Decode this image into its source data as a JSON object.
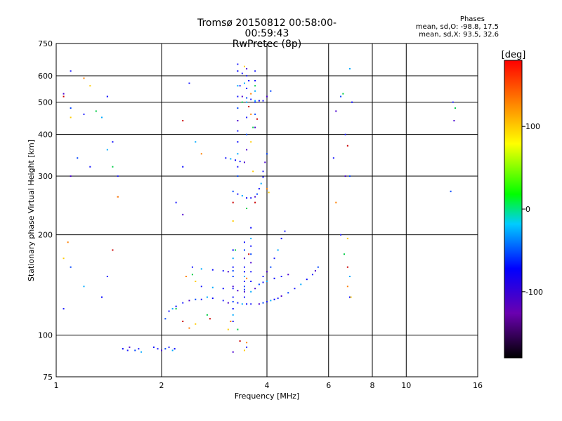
{
  "header": {
    "title_line1": "Tromsø 20150812 00:58:00-00:59:43",
    "title_line2": "RwPretec (8p)"
  },
  "phase_info": {
    "heading": "Phases",
    "line1": "mean, sd,O: -98.8, 17.5",
    "line2": "mean, sd,X:  93.5, 32.6"
  },
  "chart_data": {
    "type": "scatter",
    "title": "Tromsø 20150812 00:58:00-00:59:43",
    "subtitle": "RwPretec (8p)",
    "xlabel": "Frequency [MHz]",
    "ylabel": "Stationary phase Virtual Height [km]",
    "xscale": "log",
    "yscale": "log",
    "xlim": [
      1,
      16
    ],
    "ylim": [
      75,
      750
    ],
    "xticks": [
      1,
      2,
      4,
      6,
      8,
      10,
      16
    ],
    "xticklabels": [
      "1",
      "2",
      "4",
      "6",
      "8",
      "10",
      "16"
    ],
    "yticks": [
      75,
      100,
      200,
      300,
      400,
      500,
      600,
      750
    ],
    "yticklabels": [
      "75",
      "100",
      "200",
      "300",
      "400",
      "500",
      "600",
      "750"
    ],
    "grid": true,
    "colorbar": {
      "label": "[deg]",
      "range": [
        -180,
        180
      ],
      "ticks": [
        -100,
        0,
        100
      ],
      "colors": [
        "#000000",
        "#6a00b0",
        "#0000ff",
        "#00ccff",
        "#00ff00",
        "#ffff00",
        "#ff8000",
        "#ff0000"
      ]
    },
    "series": [
      {
        "points": [
          [
            1.55,
            91
          ],
          [
            1.6,
            90
          ],
          [
            1.62,
            92
          ],
          [
            1.68,
            90
          ],
          [
            1.72,
            91
          ],
          [
            1.75,
            89
          ],
          [
            1.9,
            92
          ],
          [
            1.95,
            91
          ],
          [
            2.0,
            90
          ],
          [
            2.05,
            91
          ],
          [
            2.1,
            92
          ],
          [
            2.15,
            90
          ],
          [
            2.18,
            91
          ],
          [
            3.5,
            92
          ],
          [
            3.2,
            89
          ],
          [
            2.05,
            112
          ],
          [
            2.1,
            118
          ],
          [
            2.15,
            120
          ],
          [
            2.2,
            122
          ],
          [
            2.3,
            125
          ],
          [
            2.4,
            127
          ],
          [
            2.5,
            128
          ],
          [
            2.6,
            128
          ],
          [
            2.7,
            130
          ],
          [
            2.8,
            129
          ],
          [
            3.0,
            127
          ],
          [
            3.1,
            125
          ],
          [
            3.2,
            126
          ],
          [
            3.3,
            125
          ],
          [
            3.4,
            124
          ],
          [
            3.5,
            124
          ],
          [
            3.6,
            124
          ],
          [
            3.8,
            124
          ],
          [
            3.9,
            125
          ],
          [
            4.0,
            126
          ],
          [
            4.1,
            127
          ],
          [
            4.2,
            128
          ],
          [
            4.3,
            129
          ],
          [
            4.4,
            131
          ],
          [
            4.6,
            134
          ],
          [
            4.8,
            138
          ],
          [
            5.0,
            142
          ],
          [
            5.2,
            147
          ],
          [
            5.4,
            152
          ],
          [
            5.5,
            156
          ],
          [
            5.6,
            160
          ],
          [
            2.45,
            160
          ],
          [
            2.6,
            158
          ],
          [
            2.8,
            157
          ],
          [
            3.0,
            156
          ],
          [
            3.1,
            155
          ],
          [
            3.2,
            156
          ],
          [
            2.6,
            140
          ],
          [
            2.8,
            139
          ],
          [
            3.0,
            138
          ],
          [
            3.2,
            138
          ],
          [
            3.3,
            136
          ],
          [
            3.45,
            137
          ],
          [
            3.2,
            110
          ],
          [
            3.2,
            115
          ],
          [
            3.2,
            120
          ],
          [
            3.2,
            130
          ],
          [
            3.2,
            140
          ],
          [
            3.2,
            150
          ],
          [
            3.2,
            160
          ],
          [
            3.2,
            170
          ],
          [
            3.2,
            180
          ],
          [
            3.45,
            130
          ],
          [
            3.45,
            135
          ],
          [
            3.45,
            140
          ],
          [
            3.45,
            145
          ],
          [
            3.45,
            150
          ],
          [
            3.45,
            155
          ],
          [
            3.45,
            160
          ],
          [
            3.45,
            170
          ],
          [
            3.45,
            180
          ],
          [
            3.45,
            190
          ],
          [
            3.6,
            135
          ],
          [
            3.6,
            145
          ],
          [
            3.6,
            155
          ],
          [
            3.6,
            165
          ],
          [
            3.6,
            175
          ],
          [
            3.6,
            185
          ],
          [
            3.6,
            195
          ],
          [
            3.6,
            210
          ],
          [
            3.9,
            150
          ],
          [
            4.0,
            155
          ],
          [
            4.1,
            160
          ],
          [
            4.2,
            170
          ],
          [
            4.3,
            180
          ],
          [
            4.4,
            195
          ],
          [
            4.5,
            205
          ],
          [
            3.7,
            138
          ],
          [
            3.8,
            142
          ],
          [
            3.9,
            144
          ],
          [
            4.0,
            145
          ],
          [
            4.2,
            148
          ],
          [
            4.4,
            150
          ],
          [
            4.6,
            152
          ],
          [
            3.2,
            270
          ],
          [
            3.3,
            265
          ],
          [
            3.4,
            262
          ],
          [
            3.5,
            258
          ],
          [
            3.6,
            258
          ],
          [
            3.7,
            260
          ],
          [
            3.75,
            265
          ],
          [
            3.8,
            275
          ],
          [
            3.85,
            285
          ],
          [
            3.9,
            298
          ],
          [
            3.9,
            310
          ],
          [
            3.95,
            330
          ],
          [
            4.0,
            350
          ],
          [
            3.05,
            340
          ],
          [
            3.15,
            338
          ],
          [
            3.25,
            335
          ],
          [
            3.35,
            332
          ],
          [
            3.45,
            330
          ],
          [
            3.3,
            300
          ],
          [
            3.3,
            320
          ],
          [
            3.3,
            350
          ],
          [
            3.3,
            380
          ],
          [
            3.3,
            410
          ],
          [
            3.3,
            440
          ],
          [
            3.3,
            480
          ],
          [
            3.3,
            520
          ],
          [
            3.3,
            560
          ],
          [
            3.3,
            620
          ],
          [
            3.3,
            650
          ],
          [
            3.5,
            360
          ],
          [
            3.5,
            400
          ],
          [
            3.5,
            450
          ],
          [
            3.5,
            500
          ],
          [
            3.5,
            550
          ],
          [
            3.5,
            600
          ],
          [
            3.7,
            420
          ],
          [
            3.7,
            460
          ],
          [
            3.7,
            500
          ],
          [
            3.7,
            540
          ],
          [
            3.7,
            580
          ],
          [
            3.7,
            620
          ],
          [
            3.4,
            520
          ],
          [
            3.5,
            515
          ],
          [
            3.6,
            510
          ],
          [
            3.7,
            505
          ],
          [
            3.8,
            505
          ],
          [
            3.9,
            505
          ],
          [
            4.0,
            520
          ],
          [
            4.1,
            540
          ],
          [
            3.35,
            560
          ],
          [
            3.45,
            570
          ],
          [
            3.55,
            580
          ],
          [
            3.4,
            610
          ],
          [
            3.5,
            630
          ],
          [
            1.1,
            160
          ],
          [
            1.05,
            120
          ],
          [
            1.2,
            140
          ],
          [
            1.35,
            130
          ],
          [
            1.4,
            150
          ],
          [
            1.1,
            300
          ],
          [
            1.15,
            340
          ],
          [
            1.25,
            320
          ],
          [
            1.4,
            360
          ],
          [
            1.45,
            380
          ],
          [
            1.5,
            300
          ],
          [
            1.05,
            530
          ],
          [
            1.1,
            480
          ],
          [
            1.2,
            460
          ],
          [
            1.35,
            450
          ],
          [
            1.4,
            520
          ],
          [
            1.1,
            620
          ],
          [
            6.3,
            470
          ],
          [
            6.5,
            520
          ],
          [
            6.7,
            400
          ],
          [
            6.9,
            630
          ],
          [
            7.0,
            500
          ],
          [
            6.2,
            340
          ],
          [
            6.7,
            300
          ],
          [
            6.9,
            300
          ],
          [
            6.5,
            200
          ],
          [
            6.9,
            150
          ],
          [
            6.9,
            130
          ],
          [
            13.6,
            500
          ],
          [
            13.7,
            440
          ],
          [
            13.4,
            270
          ],
          [
            2.4,
            570
          ],
          [
            2.5,
            380
          ],
          [
            2.3,
            320
          ],
          [
            2.2,
            250
          ],
          [
            2.3,
            230
          ]
        ]
      },
      {
        "points": [
          [
            3.15,
            110
          ],
          [
            3.1,
            104
          ],
          [
            3.3,
            104
          ],
          [
            3.35,
            96
          ],
          [
            3.5,
            95
          ],
          [
            3.45,
            90
          ],
          [
            3.25,
            180
          ],
          [
            3.55,
            175
          ],
          [
            3.5,
            148
          ],
          [
            3.2,
            220
          ],
          [
            3.5,
            240
          ],
          [
            3.2,
            250
          ],
          [
            2.35,
            150
          ],
          [
            2.5,
            145
          ],
          [
            2.45,
            152
          ],
          [
            1.45,
            180
          ],
          [
            1.08,
            190
          ],
          [
            1.05,
            170
          ],
          [
            1.45,
            320
          ],
          [
            1.5,
            260
          ],
          [
            1.5,
            260
          ],
          [
            1.25,
            560
          ],
          [
            1.3,
            470
          ],
          [
            2.3,
            440
          ],
          [
            2.6,
            350
          ],
          [
            3.6,
            380
          ],
          [
            3.65,
            420
          ],
          [
            3.75,
            445
          ],
          [
            3.6,
            460
          ],
          [
            3.65,
            310
          ],
          [
            3.4,
            500
          ],
          [
            3.55,
            485
          ],
          [
            3.6,
            530
          ],
          [
            3.45,
            640
          ],
          [
            3.7,
            560
          ],
          [
            3.7,
            250
          ],
          [
            4.0,
            275
          ],
          [
            4.05,
            268
          ],
          [
            6.6,
            530
          ],
          [
            6.8,
            370
          ],
          [
            6.3,
            250
          ],
          [
            6.8,
            195
          ],
          [
            6.65,
            175
          ],
          [
            6.8,
            160
          ],
          [
            6.8,
            140
          ],
          [
            6.95,
            130
          ],
          [
            13.8,
            480
          ],
          [
            1.05,
            520
          ],
          [
            1.2,
            590
          ],
          [
            1.1,
            450
          ],
          [
            2.2,
            120
          ],
          [
            2.3,
            110
          ],
          [
            2.4,
            105
          ],
          [
            2.5,
            108
          ],
          [
            2.7,
            115
          ],
          [
            2.75,
            112
          ]
        ]
      }
    ]
  }
}
